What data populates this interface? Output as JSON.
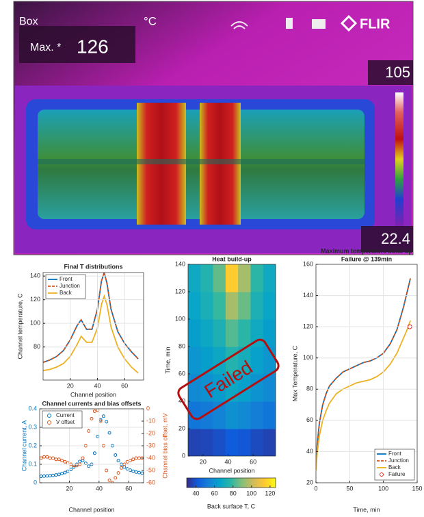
{
  "thermal_image": {
    "mode": "Box",
    "max_label": "Max. *",
    "max_value": "126",
    "unit": "°C",
    "brand": "FLIR",
    "scale_max": "105",
    "scale_min": "22.4"
  },
  "chart_data": [
    {
      "type": "line",
      "title": "Final T distributions",
      "xlabel": "Channel position",
      "ylabel": "Channel temperature, C",
      "x": [
        0,
        5,
        10,
        15,
        20,
        25,
        28,
        32,
        36,
        40,
        43,
        45,
        47,
        50,
        55,
        60,
        65,
        70
      ],
      "series": [
        {
          "name": "Front",
          "color": "#0072bd",
          "values": [
            67,
            69,
            72,
            77,
            86,
            98,
            103,
            95,
            95,
            112,
            136,
            143,
            134,
            112,
            93,
            83,
            76,
            70
          ]
        },
        {
          "name": "Junction",
          "color": "#d95319",
          "dash": true,
          "values": [
            67,
            69,
            72,
            77,
            86,
            98,
            103,
            95,
            95,
            112,
            136,
            143,
            134,
            112,
            93,
            83,
            76,
            70
          ]
        },
        {
          "name": "Back",
          "color": "#edb120",
          "values": [
            60,
            61,
            63,
            66,
            72,
            82,
            89,
            84,
            84,
            96,
            116,
            123,
            116,
            97,
            80,
            70,
            63,
            58
          ]
        }
      ],
      "xlim": [
        0,
        74
      ],
      "ylim": [
        52,
        143
      ],
      "xticks": [
        20,
        40,
        60
      ],
      "yticks": [
        80,
        100,
        120,
        140
      ],
      "grid": true,
      "legend": "upper left"
    },
    {
      "type": "scatter",
      "title": "Channel currents and bias offsets",
      "xlabel": "Channel position",
      "ylabel": "Channel current, A",
      "y2label": "Channel bias offset, mV",
      "x": [
        1,
        3,
        5,
        7,
        9,
        11,
        13,
        15,
        17,
        19,
        21,
        23,
        25,
        27,
        29,
        31,
        33,
        35,
        37,
        39,
        41,
        43,
        45,
        47,
        49,
        51,
        53,
        55,
        57,
        59,
        61,
        63,
        65,
        67,
        69
      ],
      "series": [
        {
          "name": "Current",
          "color": "#0072bd",
          "values": [
            0.035,
            0.036,
            0.037,
            0.038,
            0.04,
            0.042,
            0.045,
            0.05,
            0.055,
            0.062,
            0.072,
            0.085,
            0.1,
            0.115,
            0.12,
            0.105,
            0.09,
            0.1,
            0.16,
            0.25,
            0.34,
            0.36,
            0.33,
            0.27,
            0.2,
            0.15,
            0.12,
            0.1,
            0.085,
            0.075,
            0.068,
            0.062,
            0.058,
            0.055,
            0.052
          ]
        },
        {
          "name": "V offset",
          "color": "#d95319",
          "axis": "y2",
          "values": [
            -40,
            -39,
            -39,
            -40,
            -40,
            -41,
            -41,
            -42,
            -43,
            -44,
            -45,
            -46,
            -46,
            -45,
            -40,
            -30,
            -18,
            -8,
            -2,
            -1,
            -10,
            -30,
            -50,
            -58,
            -60,
            -56,
            -52,
            -48,
            -45,
            -43,
            -42,
            -41,
            -40,
            -40,
            -40
          ]
        }
      ],
      "xlim": [
        0,
        70
      ],
      "ylim": [
        0,
        0.4
      ],
      "y2lim": [
        -60,
        0
      ],
      "xticks": [
        20,
        40,
        60
      ],
      "yticks": [
        0,
        0.1,
        0.2,
        0.3,
        0.4
      ],
      "y2ticks": [
        0,
        -10,
        -20,
        -30,
        -40,
        -50,
        -60
      ],
      "y_color": "#0072bd",
      "y2_color": "#d95319",
      "grid": true,
      "legend": "upper left"
    },
    {
      "type": "heatmap",
      "title": "Heat build-up",
      "xlabel": "Channel position",
      "ylabel": "Time, min",
      "x": [
        13,
        23,
        33,
        43,
        53,
        63,
        73
      ],
      "y": [
        10,
        30,
        50,
        70,
        90,
        110,
        130
      ],
      "values": [
        [
          36,
          37,
          39,
          42,
          41,
          38,
          36
        ],
        [
          50,
          52,
          55,
          59,
          57,
          53,
          50
        ],
        [
          57,
          59,
          63,
          68,
          65,
          60,
          57
        ],
        [
          61,
          64,
          68,
          75,
          71,
          65,
          61
        ],
        [
          64,
          68,
          73,
          83,
          77,
          69,
          64
        ],
        [
          67,
          72,
          79,
          95,
          86,
          73,
          67
        ],
        [
          69,
          75,
          85,
          115,
          95,
          77,
          69
        ]
      ],
      "xlim": [
        8,
        78
      ],
      "ylim": [
        0,
        140
      ],
      "xticks": [
        20,
        40,
        60
      ],
      "yticks": [
        0,
        20,
        40,
        60,
        80,
        100,
        120,
        140
      ],
      "colormap": "parula",
      "clim": [
        30,
        126
      ],
      "cticks": [
        40,
        60,
        80,
        100,
        120
      ],
      "colorbar_label": "Back surface T, C",
      "annotation": {
        "text": "Failed",
        "color": "#b40f0f"
      }
    },
    {
      "type": "line",
      "title": "Maximum temperature build-up",
      "subtitle": "Failure @ 139min",
      "xlabel": "Time, min",
      "ylabel": "Max Temperature, C",
      "x": [
        0,
        2,
        5,
        10,
        15,
        20,
        30,
        40,
        50,
        60,
        70,
        80,
        90,
        100,
        110,
        120,
        130,
        135,
        140
      ],
      "series": [
        {
          "name": "Front",
          "color": "#0072bd",
          "values": [
            30,
            45,
            58,
            70,
            77,
            82,
            87,
            91,
            93,
            95,
            97,
            98,
            100,
            103,
            109,
            118,
            133,
            142,
            151
          ]
        },
        {
          "name": "Junction",
          "color": "#d95319",
          "dash": true,
          "values": [
            30,
            45,
            58,
            70,
            77,
            82,
            87,
            91,
            93,
            95,
            97,
            98,
            100,
            103,
            109,
            118,
            133,
            142,
            151
          ]
        },
        {
          "name": "Back",
          "color": "#edb120",
          "values": [
            28,
            40,
            50,
            60,
            66,
            71,
            77,
            80,
            82,
            84,
            85,
            86,
            88,
            91,
            96,
            103,
            113,
            118,
            124
          ]
        },
        {
          "name": "Failure",
          "color": "#e8251b",
          "marker": "circle",
          "x": [
            139
          ],
          "values": [
            120
          ]
        }
      ],
      "xlim": [
        0,
        150
      ],
      "ylim": [
        20,
        160
      ],
      "xticks": [
        0,
        50,
        100,
        150
      ],
      "yticks": [
        20,
        40,
        60,
        80,
        100,
        120,
        140,
        160
      ],
      "grid": true,
      "legend": "lower right"
    }
  ]
}
